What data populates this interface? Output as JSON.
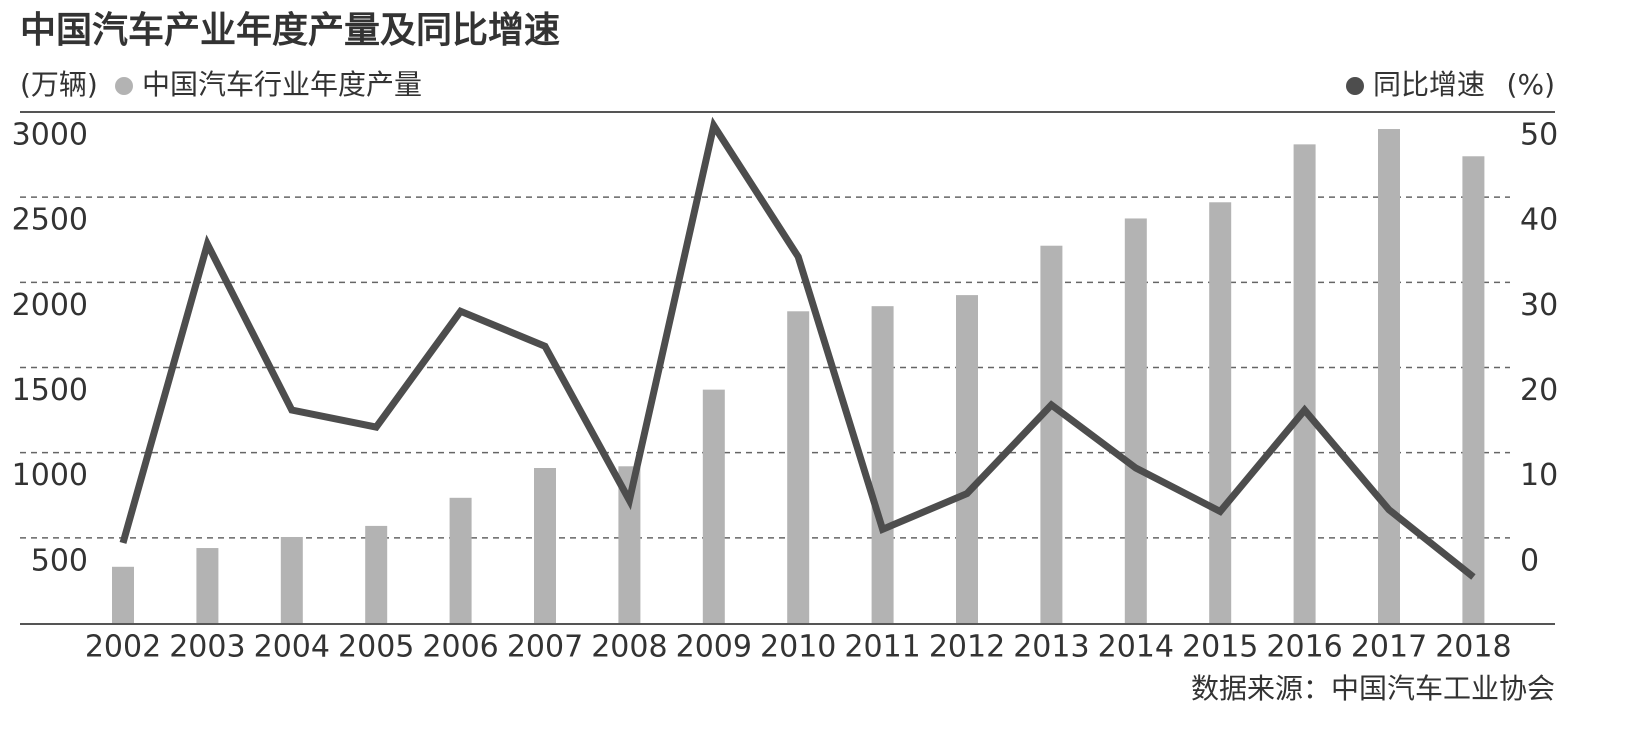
{
  "chart_data": {
    "type": "bar-line",
    "title": "中国汽车产业年度产量及同比增速",
    "y_label": "(万辆)",
    "y2_label": "(%)",
    "source": "数据来源：中国汽车工业协会",
    "categories": [
      "2002",
      "2003",
      "2004",
      "2005",
      "2006",
      "2007",
      "2008",
      "2009",
      "2010",
      "2011",
      "2012",
      "2013",
      "2014",
      "2015",
      "2016",
      "2017",
      "2018"
    ],
    "series": [
      {
        "name": "中国汽车行业年度产量",
        "type": "bar",
        "color": "#b3b3b3",
        "values": [
          330,
          440,
          505,
          570,
          735,
          910,
          920,
          1370,
          1830,
          1860,
          1925,
          2215,
          2375,
          2470,
          2810,
          2900,
          2740
        ]
      },
      {
        "name": "同比增速",
        "type": "line",
        "axis": "y2",
        "color": "#4d4d4d",
        "values": [
          -0.6,
          34.5,
          15,
          13,
          26.6,
          22.5,
          4.4,
          48.4,
          33,
          1,
          5.2,
          15.6,
          8.2,
          3.1,
          15,
          3.3,
          -4.6
        ]
      }
    ],
    "ylim": [
      0,
      3000
    ],
    "yticks": [
      500,
      1000,
      1500,
      2000,
      2500,
      3000
    ],
    "y2lim": [
      -10,
      50
    ],
    "y2ticks": [
      0,
      10,
      20,
      30,
      40,
      50
    ],
    "grid": true
  }
}
